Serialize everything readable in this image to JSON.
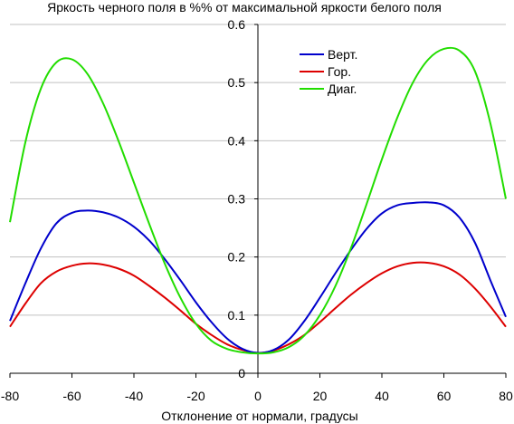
{
  "chart_data": {
    "type": "line",
    "title": "Яркость черного поля в %% от максимальной яркости белого поля",
    "xlabel": "Отклонение от нормали, градусы",
    "ylabel": "",
    "xlim": [
      -80,
      80
    ],
    "ylim": [
      0,
      0.6
    ],
    "x_ticks": [
      "-80",
      "-60",
      "-40",
      "-20",
      "0",
      "20",
      "40",
      "60",
      "80"
    ],
    "y_ticks": [
      "0",
      "0.1",
      "0.2",
      "0.3",
      "0.4",
      "0.5",
      "0.6"
    ],
    "grid": "horizontal",
    "legend_position": "top-right",
    "x": [
      -80,
      -75,
      -70,
      -65,
      -60,
      -55,
      -50,
      -45,
      -40,
      -35,
      -30,
      -25,
      -20,
      -15,
      -10,
      -5,
      0,
      5,
      10,
      15,
      20,
      25,
      30,
      35,
      40,
      45,
      50,
      55,
      60,
      65,
      70,
      75,
      80
    ],
    "series": [
      {
        "name": "Верт.",
        "color": "#0000cc",
        "values": [
          0.09,
          0.155,
          0.215,
          0.258,
          0.276,
          0.28,
          0.277,
          0.268,
          0.252,
          0.228,
          0.196,
          0.16,
          0.122,
          0.088,
          0.06,
          0.042,
          0.035,
          0.04,
          0.058,
          0.09,
          0.13,
          0.172,
          0.212,
          0.248,
          0.275,
          0.289,
          0.293,
          0.294,
          0.289,
          0.268,
          0.225,
          0.16,
          0.097
        ]
      },
      {
        "name": "Гор.",
        "color": "#dd0000",
        "values": [
          0.08,
          0.12,
          0.155,
          0.175,
          0.185,
          0.189,
          0.187,
          0.18,
          0.168,
          0.15,
          0.13,
          0.108,
          0.085,
          0.066,
          0.05,
          0.04,
          0.035,
          0.039,
          0.05,
          0.066,
          0.088,
          0.112,
          0.135,
          0.155,
          0.172,
          0.184,
          0.19,
          0.19,
          0.184,
          0.17,
          0.146,
          0.115,
          0.08
        ]
      },
      {
        "name": "Диаг.",
        "color": "#22dd00",
        "values": [
          0.26,
          0.398,
          0.49,
          0.535,
          0.54,
          0.515,
          0.465,
          0.4,
          0.328,
          0.256,
          0.188,
          0.13,
          0.085,
          0.056,
          0.042,
          0.036,
          0.034,
          0.036,
          0.045,
          0.065,
          0.1,
          0.15,
          0.215,
          0.29,
          0.368,
          0.44,
          0.5,
          0.54,
          0.558,
          0.555,
          0.52,
          0.43,
          0.3
        ]
      }
    ]
  }
}
